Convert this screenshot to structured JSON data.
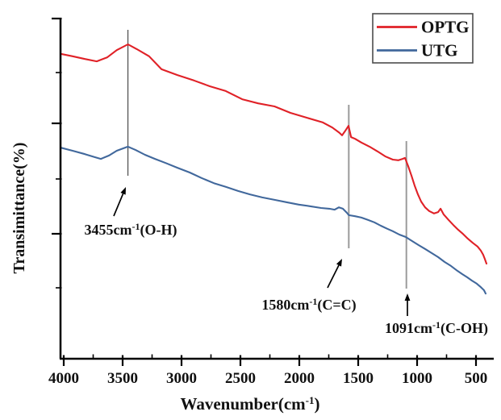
{
  "figure": {
    "y_axis_label": "Transimittance(%)",
    "x_axis_title": {
      "pre": "Wavenumber(cm",
      "sup": "-1",
      "post": ")"
    },
    "x_tick_labels": [
      "4000",
      "3500",
      "3000",
      "2500",
      "2000",
      "1500",
      "1000",
      "500"
    ]
  },
  "legend": {
    "entries": [
      {
        "label": "OPTG",
        "color": "#e02127"
      },
      {
        "label": "UTG",
        "color": "#41689c"
      }
    ]
  },
  "chart_data": {
    "type": "line",
    "title": "",
    "xlabel": "Wavenumber(cm-1)",
    "ylabel": "Transimittance(%)",
    "x_reversed": true,
    "xlim": [
      4000,
      400
    ],
    "x_ticks": [
      4000,
      3500,
      3000,
      2500,
      2000,
      1500,
      1000,
      500
    ],
    "y_ticks_labeled": false,
    "y_units": "relative transmittance, unlabeled axis (0-100 estimated from plot)",
    "grid": false,
    "legend_position": "top-right",
    "series": [
      {
        "name": "OPTG",
        "color": "#e02127",
        "points": [
          [
            4025,
            89.4
          ],
          [
            3925,
            88.7
          ],
          [
            3820,
            87.9
          ],
          [
            3720,
            87.2
          ],
          [
            3630,
            88.4
          ],
          [
            3550,
            90.5
          ],
          [
            3455,
            92.2
          ],
          [
            3380,
            90.8
          ],
          [
            3275,
            88.7
          ],
          [
            3170,
            84.9
          ],
          [
            3035,
            83.2
          ],
          [
            2895,
            81.6
          ],
          [
            2760,
            79.9
          ],
          [
            2625,
            78.5
          ],
          [
            2485,
            76.1
          ],
          [
            2350,
            74.9
          ],
          [
            2210,
            74.0
          ],
          [
            2075,
            72.1
          ],
          [
            1940,
            70.7
          ],
          [
            1800,
            69.3
          ],
          [
            1720,
            67.8
          ],
          [
            1660,
            66.3
          ],
          [
            1637,
            65.5
          ],
          [
            1610,
            66.8
          ],
          [
            1582,
            68.3
          ],
          [
            1560,
            65.0
          ],
          [
            1527,
            64.5
          ],
          [
            1473,
            63.4
          ],
          [
            1404,
            62.2
          ],
          [
            1336,
            60.8
          ],
          [
            1267,
            59.3
          ],
          [
            1206,
            58.4
          ],
          [
            1158,
            58.2
          ],
          [
            1123,
            58.6
          ],
          [
            1103,
            58.9
          ],
          [
            1076,
            56.5
          ],
          [
            1048,
            53.7
          ],
          [
            1021,
            50.8
          ],
          [
            993,
            48.2
          ],
          [
            966,
            46.1
          ],
          [
            932,
            44.4
          ],
          [
            897,
            43.3
          ],
          [
            856,
            42.6
          ],
          [
            822,
            43.0
          ],
          [
            801,
            44.0
          ],
          [
            774,
            42.3
          ],
          [
            733,
            40.7
          ],
          [
            692,
            39.2
          ],
          [
            651,
            37.8
          ],
          [
            610,
            36.6
          ],
          [
            569,
            35.2
          ],
          [
            528,
            34.0
          ],
          [
            487,
            32.9
          ],
          [
            459,
            31.7
          ],
          [
            439,
            30.5
          ],
          [
            425,
            29.3
          ],
          [
            411,
            27.9
          ]
        ]
      },
      {
        "name": "UTG",
        "color": "#41689c",
        "points": [
          [
            4025,
            61.9
          ],
          [
            3925,
            61.0
          ],
          [
            3820,
            60.0
          ],
          [
            3735,
            59.1
          ],
          [
            3685,
            58.6
          ],
          [
            3615,
            59.6
          ],
          [
            3550,
            61.0
          ],
          [
            3455,
            62.2
          ],
          [
            3390,
            61.2
          ],
          [
            3310,
            59.8
          ],
          [
            3225,
            58.6
          ],
          [
            3135,
            57.4
          ],
          [
            3035,
            56.0
          ],
          [
            2930,
            54.6
          ],
          [
            2830,
            53.0
          ],
          [
            2725,
            51.5
          ],
          [
            2625,
            50.4
          ],
          [
            2520,
            49.2
          ],
          [
            2420,
            48.2
          ],
          [
            2315,
            47.3
          ],
          [
            2210,
            46.6
          ],
          [
            2110,
            45.9
          ],
          [
            2005,
            45.2
          ],
          [
            1905,
            44.7
          ],
          [
            1815,
            44.2
          ],
          [
            1745,
            44.0
          ],
          [
            1700,
            43.7
          ],
          [
            1664,
            44.4
          ],
          [
            1630,
            44.0
          ],
          [
            1596,
            42.8
          ],
          [
            1580,
            42.1
          ],
          [
            1527,
            41.8
          ],
          [
            1473,
            41.4
          ],
          [
            1418,
            40.7
          ],
          [
            1363,
            40.0
          ],
          [
            1308,
            39.0
          ],
          [
            1253,
            38.1
          ],
          [
            1206,
            37.4
          ],
          [
            1151,
            36.4
          ],
          [
            1096,
            35.7
          ],
          [
            1041,
            34.5
          ],
          [
            986,
            33.3
          ],
          [
            932,
            32.2
          ],
          [
            877,
            31.0
          ],
          [
            822,
            29.8
          ],
          [
            767,
            28.4
          ],
          [
            712,
            27.2
          ],
          [
            658,
            25.8
          ],
          [
            616,
            24.8
          ],
          [
            575,
            23.9
          ],
          [
            534,
            22.9
          ],
          [
            493,
            22.0
          ],
          [
            459,
            21.0
          ],
          [
            432,
            20.1
          ],
          [
            418,
            19.1
          ]
        ]
      }
    ],
    "peak_markers": [
      {
        "wavenumber": 3455,
        "assignment": "O-H",
        "label_pre": "3455cm",
        "label_sup": "-1",
        "label_post": "(O-H)"
      },
      {
        "wavenumber": 1580,
        "assignment": "C=C",
        "label_pre": "1580cm",
        "label_sup": "-1",
        "label_post": "(C=C)"
      },
      {
        "wavenumber": 1091,
        "assignment": "C-OH",
        "label_pre": "1091cm",
        "label_sup": "-1",
        "label_post": "(C-OH)"
      }
    ]
  }
}
